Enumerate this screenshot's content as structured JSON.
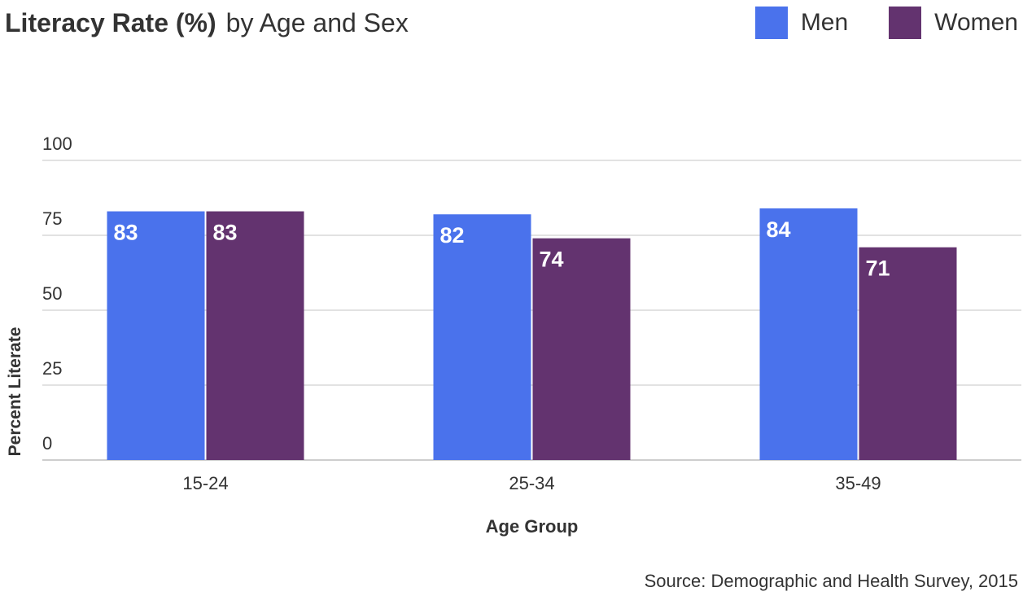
{
  "chart_data": {
    "type": "bar",
    "title_bold": "Literacy Rate (%)",
    "title_rest": "by Age and Sex",
    "categories": [
      "15-24",
      "25-34",
      "35-49"
    ],
    "series": [
      {
        "name": "Men",
        "color": "#4A72EC",
        "values": [
          83,
          82,
          84
        ]
      },
      {
        "name": "Women",
        "color": "#63336F",
        "values": [
          83,
          74,
          71
        ]
      }
    ],
    "xlabel": "Age Group",
    "ylabel": "Percent Literate",
    "ylim": [
      0,
      100
    ],
    "yticks": [
      0,
      25,
      50,
      75,
      100
    ],
    "grid": true,
    "legend_position": "top-right",
    "source": "Source: Demographic and Health Survey, 2015"
  }
}
